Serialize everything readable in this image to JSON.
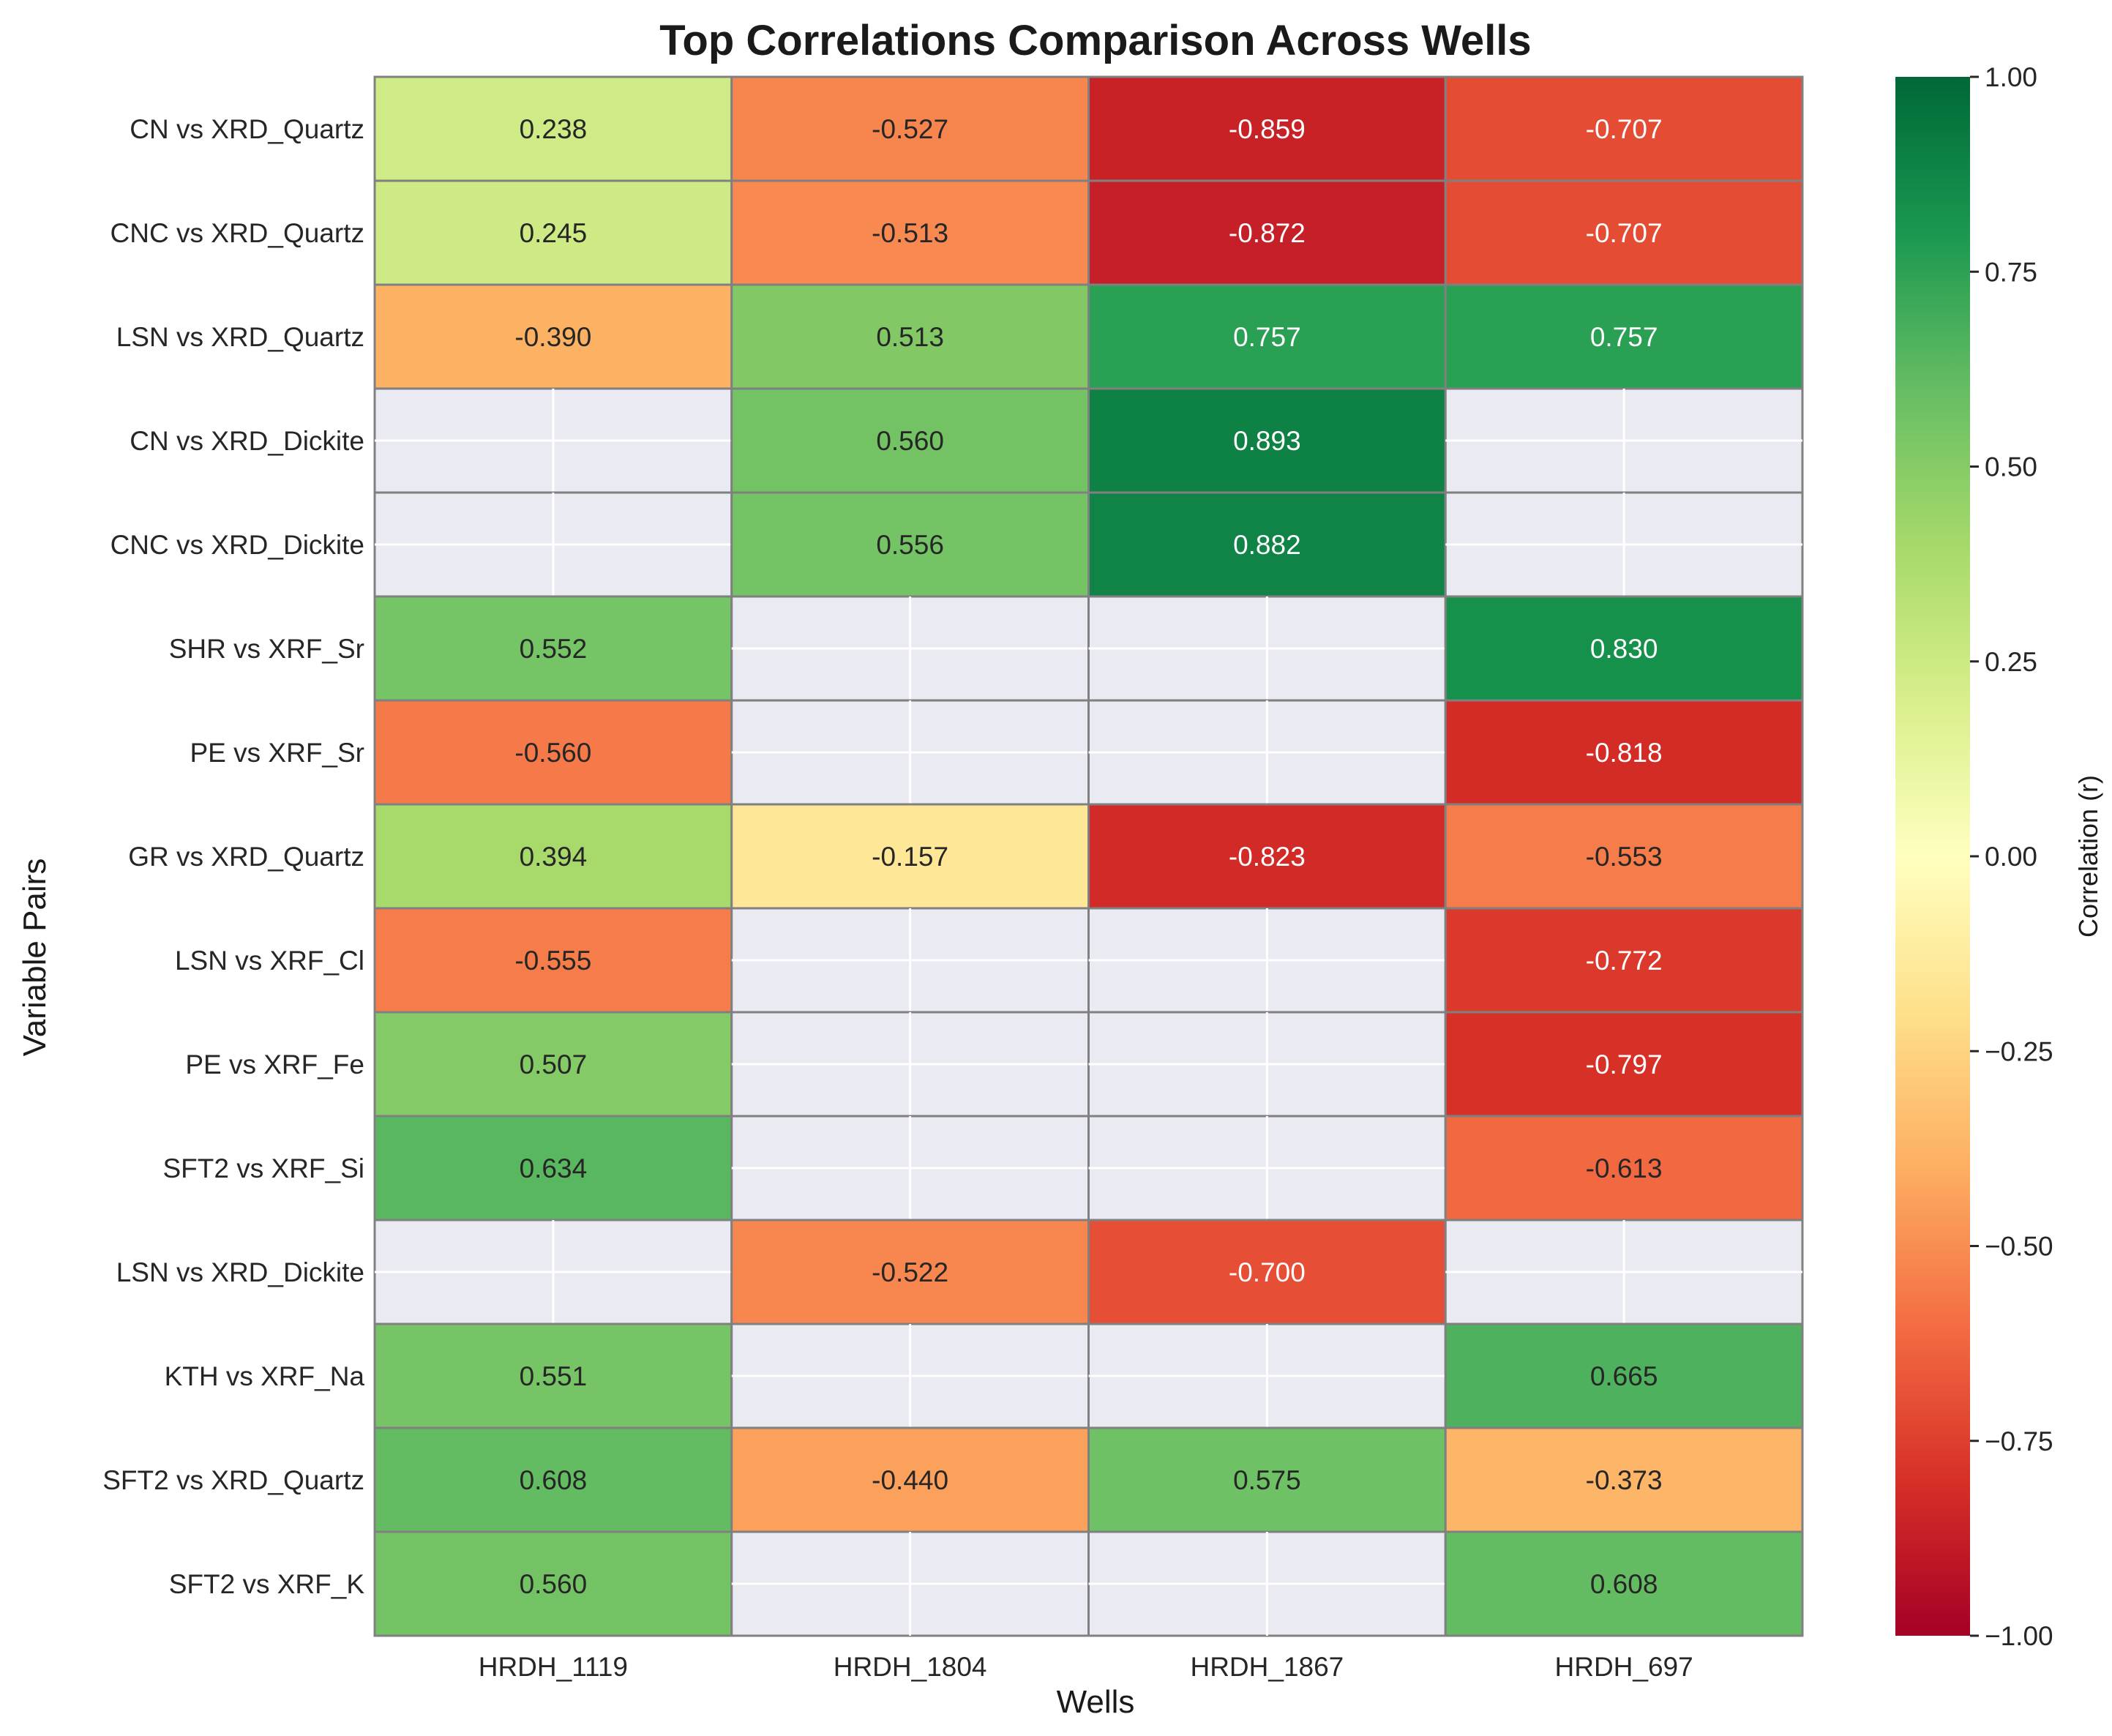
{
  "chart_data": {
    "type": "heatmap",
    "title": "Top Correlations Comparison Across Wells",
    "xlabel": "Wells",
    "ylabel": "Variable Pairs",
    "x_categories": [
      "HRDH_1119",
      "HRDH_1804",
      "HRDH_1867",
      "HRDH_697"
    ],
    "y_categories": [
      "CN vs XRD_Quartz",
      "CNC vs XRD_Quartz",
      "LSN vs XRD_Quartz",
      "CN vs XRD_Dickite",
      "CNC vs XRD_Dickite",
      "SHR vs XRF_Sr",
      "PE vs XRF_Sr",
      "GR vs XRD_Quartz",
      "LSN vs XRF_Cl",
      "PE vs XRF_Fe",
      "SFT2 vs XRF_Si",
      "LSN vs XRD_Dickite",
      "KTH vs XRF_Na",
      "SFT2 vs XRD_Quartz",
      "SFT2 vs XRF_K"
    ],
    "values": [
      [
        0.238,
        -0.527,
        -0.859,
        -0.707
      ],
      [
        0.245,
        -0.513,
        -0.872,
        -0.707
      ],
      [
        -0.39,
        0.513,
        0.757,
        0.757
      ],
      [
        null,
        0.56,
        0.893,
        null
      ],
      [
        null,
        0.556,
        0.882,
        null
      ],
      [
        0.552,
        null,
        null,
        0.83
      ],
      [
        -0.56,
        null,
        null,
        -0.818
      ],
      [
        0.394,
        -0.157,
        -0.823,
        -0.553
      ],
      [
        -0.555,
        null,
        null,
        -0.772
      ],
      [
        0.507,
        null,
        null,
        -0.797
      ],
      [
        0.634,
        null,
        null,
        -0.613
      ],
      [
        null,
        -0.522,
        -0.7,
        null
      ],
      [
        0.551,
        null,
        null,
        0.665
      ],
      [
        0.608,
        -0.44,
        0.575,
        -0.373
      ],
      [
        0.56,
        null,
        null,
        0.608
      ]
    ],
    "value_labels": [
      [
        "0.238",
        "-0.527",
        "-0.859",
        "-0.707"
      ],
      [
        "0.245",
        "-0.513",
        "-0.872",
        "-0.707"
      ],
      [
        "-0.390",
        "0.513",
        "0.757",
        "0.757"
      ],
      [
        "",
        "0.560",
        "0.893",
        ""
      ],
      [
        "",
        "0.556",
        "0.882",
        ""
      ],
      [
        "0.552",
        "",
        "",
        "0.830"
      ],
      [
        "-0.560",
        "",
        "",
        "-0.818"
      ],
      [
        "0.394",
        "-0.157",
        "-0.823",
        "-0.553"
      ],
      [
        "-0.555",
        "",
        "",
        "-0.772"
      ],
      [
        "0.507",
        "",
        "",
        "-0.797"
      ],
      [
        "0.634",
        "",
        "",
        "-0.613"
      ],
      [
        "",
        "-0.522",
        "-0.700",
        ""
      ],
      [
        "0.551",
        "",
        "",
        "0.665"
      ],
      [
        "0.608",
        "-0.440",
        "0.575",
        "-0.373"
      ],
      [
        "0.560",
        "",
        "",
        "0.608"
      ]
    ],
    "colorbar": {
      "label": "Correlation (r)",
      "range": [
        -1.0,
        1.0
      ],
      "ticks": [
        1.0,
        0.75,
        0.5,
        0.25,
        0.0,
        -0.25,
        -0.5,
        -0.75,
        -1.0
      ],
      "tick_labels": [
        "1.00",
        "0.75",
        "0.50",
        "0.25",
        "0.00",
        "−0.25",
        "−0.50",
        "−0.75",
        "−1.00"
      ],
      "colormap": "RdYlGn"
    },
    "missing_color": "#eaeaf2",
    "grid": true
  }
}
